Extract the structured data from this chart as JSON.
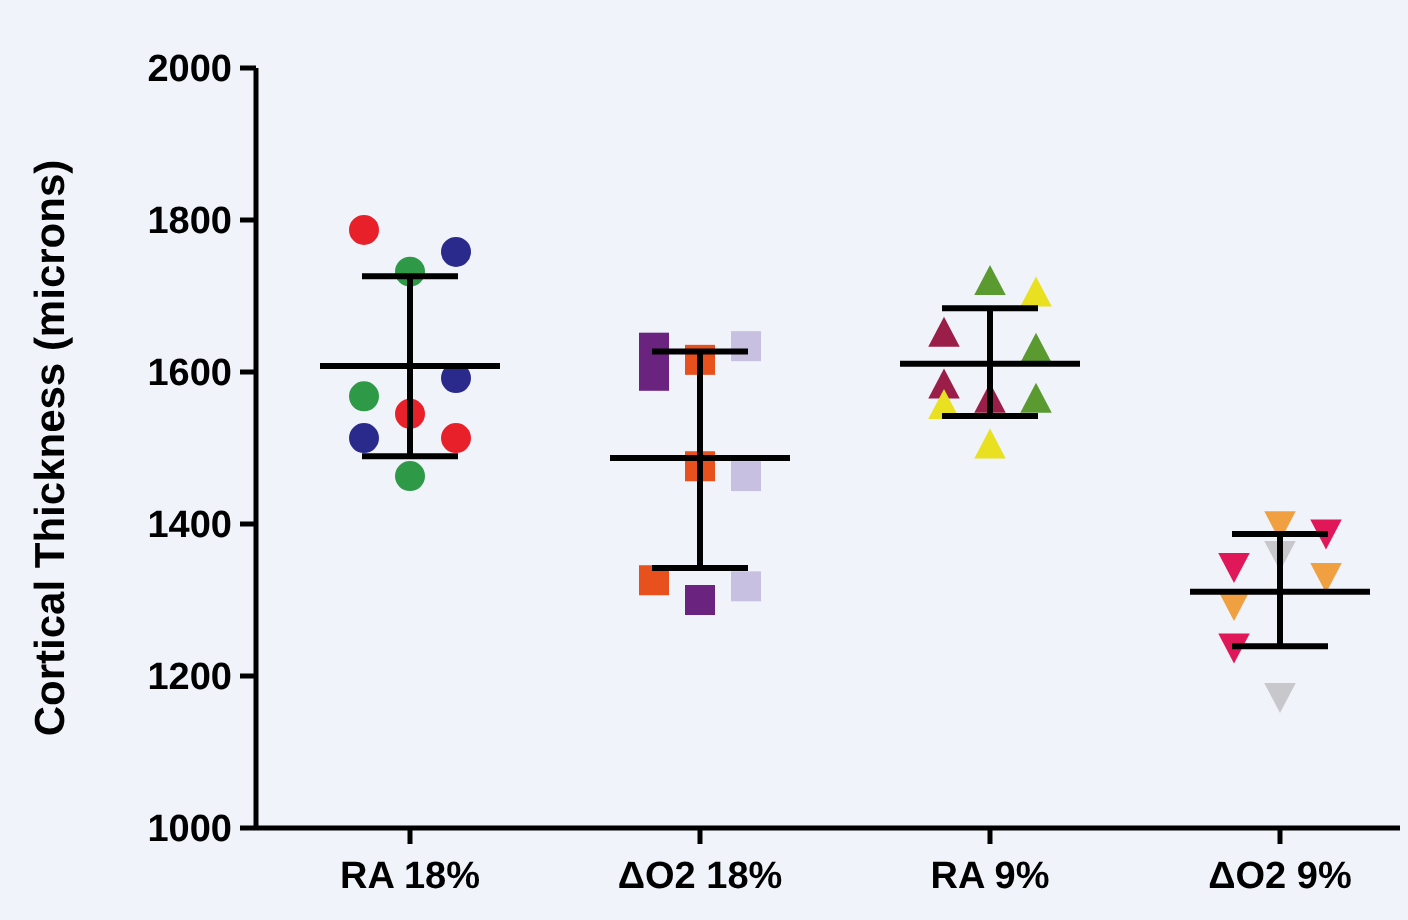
{
  "chart_data": {
    "type": "scatter",
    "ylabel": "Cortical Thickness (microns)",
    "categories": [
      "RA 18%",
      "ΔO2 18%",
      "RA 9%",
      "ΔO2 9%"
    ],
    "ylim": [
      1000,
      2000
    ],
    "yticks": [
      1000,
      1200,
      1400,
      1600,
      1800,
      2000
    ],
    "grid": false,
    "series": [
      {
        "marker": "circle",
        "x": [
          "RA 18%",
          "RA 18%",
          "RA 18%",
          "RA 18%",
          "RA 18%",
          "RA 18%",
          "RA 18%",
          "RA 18%",
          "RA 18%"
        ],
        "values": [
          1787,
          1732,
          1758,
          1568,
          1545,
          1592,
          1513,
          1463,
          1513
        ],
        "colors": [
          "#e8202a",
          "#2e9a48",
          "#2a2a8c",
          "#2e9a48",
          "#e8202a",
          "#2a2a8c",
          "#2a2a8c",
          "#2e9a48",
          "#e8202a"
        ]
      },
      {
        "marker": "square",
        "x": [
          "ΔO2 18%",
          "ΔO2 18%",
          "ΔO2 18%",
          "ΔO2 18%",
          "ΔO2 18%",
          "ΔO2 18%",
          "ΔO2 18%",
          "ΔO2 18%",
          "ΔO2 18%"
        ],
        "values": [
          1632,
          1616,
          1634,
          1595,
          1476,
          1463,
          1326,
          1300,
          1318
        ],
        "colors": [
          "#6a2480",
          "#e8501e",
          "#c8c0e0",
          "#6a2480",
          "#e8501e",
          "#c8c0e0",
          "#e8501e",
          "#6a2480",
          "#c8c0e0"
        ]
      },
      {
        "marker": "triangle",
        "x": [
          "RA 9%",
          "RA 9%",
          "RA 9%",
          "RA 9%",
          "RA 9%",
          "RA 9%",
          "RA 9%",
          "RA 9%",
          "RA 9%"
        ],
        "values": [
          1650,
          1718,
          1703,
          1582,
          1563,
          1629,
          1555,
          1503,
          1563
        ],
        "colors": [
          "#9a1e48",
          "#5a9a30",
          "#e8e020",
          "#9a1e48",
          "#9a1e48",
          "#5a9a30",
          "#e8e020",
          "#e8e020",
          "#5a9a30"
        ]
      },
      {
        "marker": "triangle-down",
        "x": [
          "ΔO2 9%",
          "ΔO2 9%",
          "ΔO2 9%",
          "ΔO2 9%",
          "ΔO2 9%",
          "ΔO2 9%",
          "ΔO2 9%",
          "ΔO2 9%"
        ],
        "values": [
          1345,
          1400,
          1389,
          1295,
          1174,
          1332,
          1239,
          1361
        ],
        "colors": [
          "#e0185a",
          "#f0a040",
          "#e0185a",
          "#f0a040",
          "#c8c8cc",
          "#f0a040",
          "#e0185a",
          "#c8c8cc"
        ]
      },
      {
        "type": "box",
        "color": "#000000",
        "boxes": [
          {
            "low": 1489,
            "q1": 1608,
            "median": 1608,
            "q3": 1608,
            "high": 1726
          },
          {
            "low": 1342,
            "q1": 1487,
            "median": 1487,
            "q3": 1487,
            "high": 1627
          },
          {
            "low": 1542,
            "q1": 1611,
            "median": 1611,
            "q3": 1611,
            "high": 1684
          },
          {
            "low": 1239,
            "q1": 1311,
            "median": 1311,
            "q3": 1311,
            "high": 1387
          }
        ]
      }
    ]
  }
}
